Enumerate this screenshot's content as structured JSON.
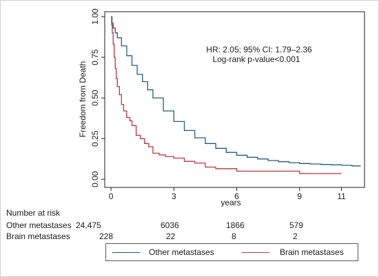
{
  "chart_data": {
    "type": "line",
    "title": "",
    "xlabel": "years",
    "ylabel": "Freedom from Death",
    "xlim": [
      -0.3,
      12.1
    ],
    "ylim": [
      -0.05,
      1.03
    ],
    "x_ticks": [
      0,
      3,
      6,
      9,
      11
    ],
    "x_tick_labels": [
      "0",
      "3",
      "6",
      "9",
      "11"
    ],
    "y_ticks": [
      0,
      0.25,
      0.5,
      0.75,
      1
    ],
    "y_tick_labels": [
      "0.00",
      "0.25",
      "0.50",
      "0.75",
      "1.00"
    ],
    "grid": false,
    "legend_position": "bottom",
    "annotations": [
      "HR: 2.05; 95% CI: 1.79–2.36",
      "Log-rank p-value<0.001"
    ],
    "series": [
      {
        "name": "Other metastases",
        "color": "#1f5a85",
        "step": true,
        "x": [
          0,
          0.05,
          0.1,
          0.2,
          0.3,
          0.5,
          0.75,
          1,
          1.25,
          1.5,
          1.75,
          2,
          2.5,
          3,
          3.5,
          4,
          4.5,
          5,
          5.5,
          6,
          6.5,
          7,
          7.5,
          8,
          8.5,
          9,
          9.5,
          10,
          10.5,
          11,
          11.5,
          11.9
        ],
        "y": [
          1,
          0.96,
          0.93,
          0.9,
          0.87,
          0.82,
          0.76,
          0.7,
          0.645,
          0.6,
          0.55,
          0.5,
          0.42,
          0.355,
          0.3,
          0.255,
          0.22,
          0.19,
          0.165,
          0.148,
          0.135,
          0.125,
          0.115,
          0.108,
          0.102,
          0.097,
          0.094,
          0.091,
          0.089,
          0.086,
          0.082,
          0.08
        ]
      },
      {
        "name": "Brain metastases",
        "color": "#c0323c",
        "step": true,
        "x": [
          0,
          0.03,
          0.06,
          0.1,
          0.15,
          0.2,
          0.25,
          0.3,
          0.4,
          0.5,
          0.6,
          0.75,
          0.9,
          1,
          1.2,
          1.4,
          1.6,
          1.8,
          2,
          2.3,
          2.6,
          3,
          3.5,
          4,
          4.5,
          5,
          6,
          7,
          8,
          8.5,
          8.9,
          9,
          10,
          11
        ],
        "y": [
          1,
          0.95,
          0.9,
          0.83,
          0.75,
          0.68,
          0.62,
          0.57,
          0.52,
          0.46,
          0.42,
          0.38,
          0.36,
          0.33,
          0.27,
          0.25,
          0.22,
          0.2,
          0.16,
          0.15,
          0.14,
          0.13,
          0.11,
          0.1,
          0.075,
          0.065,
          0.05,
          0.05,
          0.05,
          0.05,
          0.05,
          0.035,
          0.035,
          0.035
        ]
      }
    ]
  },
  "risk_table": {
    "title": "Number at risk",
    "rows": [
      {
        "label": "Other metastases",
        "values": [
          "24,475",
          "6036",
          "1866",
          "579"
        ]
      },
      {
        "label": "Brain metastases",
        "values": [
          "228",
          "22",
          "8",
          "2"
        ]
      }
    ]
  }
}
